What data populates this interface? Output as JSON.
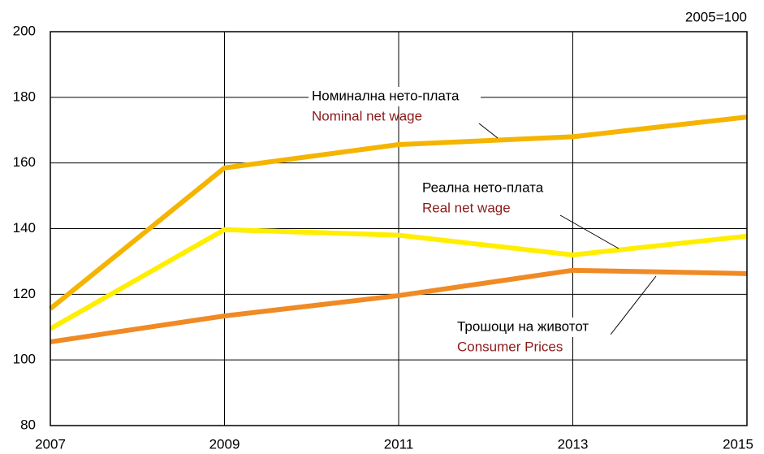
{
  "chart_data": {
    "type": "line",
    "unit_note": "2005=100",
    "x": [
      2007,
      2009,
      2011,
      2013,
      2015
    ],
    "xlim": [
      2007,
      2015
    ],
    "xticks": [
      2007,
      2009,
      2011,
      2013,
      2015
    ],
    "ylim": [
      80,
      200
    ],
    "yticks": [
      80,
      100,
      120,
      140,
      160,
      180,
      200
    ],
    "grid": true,
    "series": [
      {
        "name": "Nominal net wage",
        "local_name": "Номинална нето-плата",
        "color": "#f5b400",
        "values": [
          115.6,
          158.5,
          165.6,
          168,
          174
        ]
      },
      {
        "name": "Real net wage",
        "local_name": "Реална нето-плата",
        "color": "#ffee00",
        "values": [
          109.5,
          139.7,
          138,
          132,
          137.7
        ]
      },
      {
        "name": "Consumer Prices",
        "local_name": "Трошоци на животот",
        "color": "#f08a24",
        "values": [
          105.5,
          113.4,
          119.6,
          127.3,
          126.3
        ]
      }
    ]
  }
}
